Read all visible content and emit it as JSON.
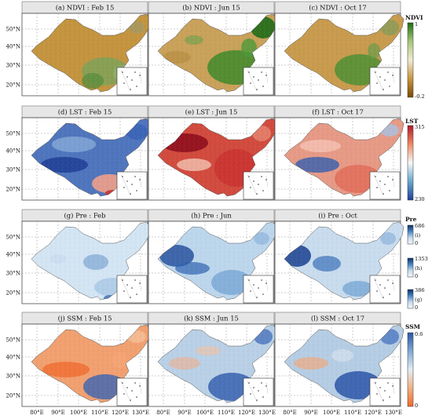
{
  "panels": [
    {
      "id": "ndvi-feb",
      "title": "(a) NDVI : Feb 15",
      "variable": "ndvi",
      "season": "feb"
    },
    {
      "id": "ndvi-jun",
      "title": "(b) NDVI : Jun 15",
      "variable": "ndvi",
      "season": "jun"
    },
    {
      "id": "ndvi-oct",
      "title": "(c) NDVI : Oct 17",
      "variable": "ndvi",
      "season": "oct"
    },
    {
      "id": "lst-feb",
      "title": "(d) LST : Feb 15",
      "variable": "lst",
      "season": "feb"
    },
    {
      "id": "lst-jun",
      "title": "(e) LST : Jun 15",
      "variable": "lst",
      "season": "jun"
    },
    {
      "id": "lst-oct",
      "title": "(f) LST : Oct 17",
      "variable": "lst",
      "season": "oct"
    },
    {
      "id": "pre-feb",
      "title": "(g) Pre : Feb",
      "variable": "pre",
      "season": "feb"
    },
    {
      "id": "pre-jun",
      "title": "(h) Pre : Jun",
      "variable": "pre",
      "season": "jun"
    },
    {
      "id": "pre-oct",
      "title": "(i) Pre : Oct",
      "variable": "pre",
      "season": "oct"
    },
    {
      "id": "ssm-feb",
      "title": "(j) SSM : Feb 15",
      "variable": "ssm",
      "season": "feb"
    },
    {
      "id": "ssm-jun",
      "title": "(k) SSM : Jun 15",
      "variable": "ssm",
      "season": "jun"
    },
    {
      "id": "ssm-oct",
      "title": "(l) SSM : Oct 17",
      "variable": "ssm",
      "season": "oct"
    }
  ],
  "axes": {
    "lat_ticks": [
      "50°N",
      "40°N",
      "30°N",
      "20°N"
    ],
    "lon_ticks": [
      "80°E",
      "90°E",
      "100°E",
      "110°E",
      "120°E",
      "130°E"
    ]
  },
  "colorbars": {
    "ndvi": {
      "title": "NDVI",
      "max": "1",
      "min": "-0.2",
      "colors": [
        "#1b6e12",
        "#a7c77a",
        "#f2ead3",
        "#c9963f",
        "#7a4a08"
      ]
    },
    "lst": {
      "title": "LST",
      "max": "315",
      "min": "230",
      "colors": [
        "#b2182b",
        "#ef8a62",
        "#f7f7f7",
        "#67a9cf",
        "#21409a"
      ]
    },
    "pre": {
      "title": "Pre",
      "bars": [
        {
          "max": "686",
          "label": "(i)",
          "min": "0"
        },
        {
          "max": "1353",
          "label": "(h)",
          "min": "0"
        },
        {
          "max": "386",
          "label": "(g)",
          "min": "0"
        }
      ],
      "colors": [
        "#08306b",
        "#4a84c3",
        "#c6dbef",
        "#f4f9fd"
      ]
    },
    "ssm": {
      "title": "SSM",
      "max": "0.6",
      "min": "0",
      "colors": [
        "#2b55a8",
        "#7fa9d5",
        "#e3edf4",
        "#f3b184",
        "#ef6a2c"
      ]
    }
  }
}
